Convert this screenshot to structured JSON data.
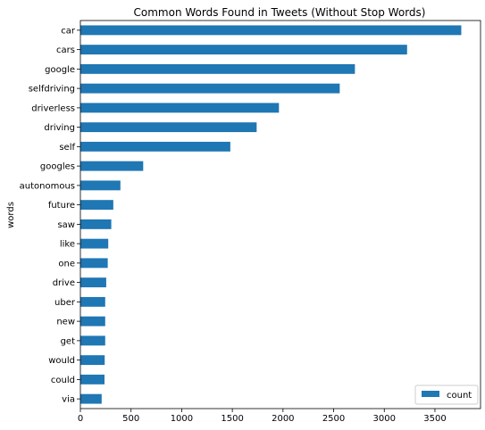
{
  "chart_data": {
    "type": "bar",
    "orientation": "horizontal",
    "title": "Common Words Found in Tweets (Without Stop Words)",
    "ylabel": "words",
    "xlabel": "",
    "categories": [
      "car",
      "cars",
      "google",
      "selfdriving",
      "driverless",
      "driving",
      "self",
      "googles",
      "autonomous",
      "future",
      "saw",
      "like",
      "one",
      "drive",
      "uber",
      "new",
      "get",
      "would",
      "could",
      "via"
    ],
    "series": [
      {
        "name": "count",
        "values": [
          3760,
          3225,
          2710,
          2560,
          1960,
          1740,
          1480,
          620,
          395,
          325,
          305,
          275,
          270,
          255,
          245,
          245,
          245,
          240,
          238,
          210
        ]
      }
    ],
    "xlim": [
      0,
      3950
    ],
    "xticks": [
      0,
      500,
      1000,
      1500,
      2000,
      2500,
      3000,
      3500
    ],
    "grid": false,
    "legend_position": "lower-right",
    "colors": {
      "bar": "#1f77b4",
      "axis": "#000000",
      "background": "#ffffff"
    }
  }
}
